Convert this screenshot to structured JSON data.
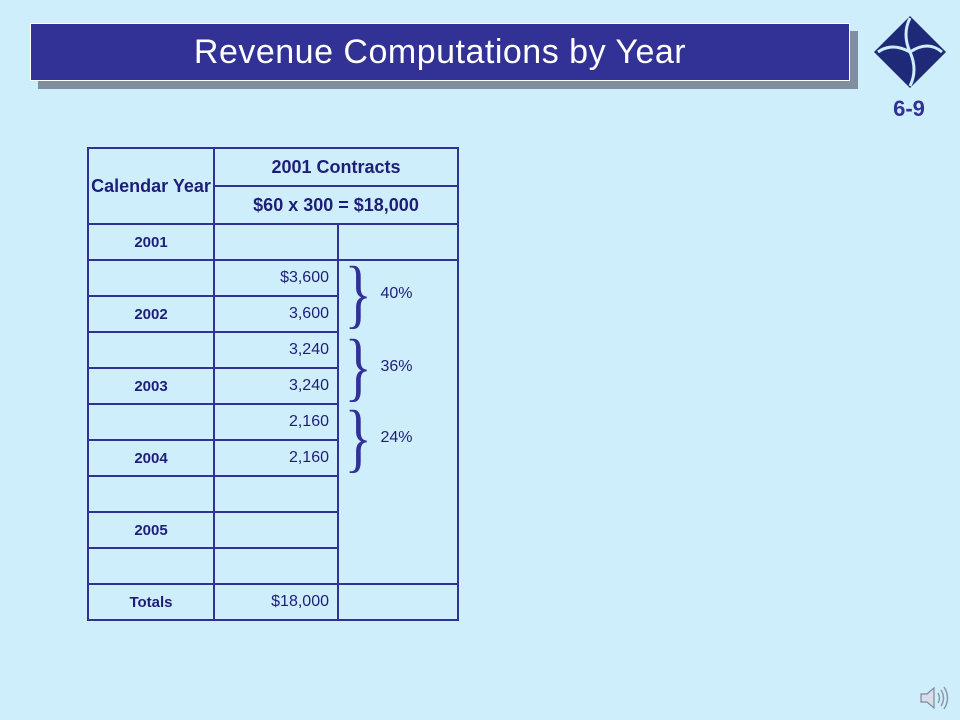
{
  "slide": {
    "title": "Revenue Computations by Year",
    "number": "6-9"
  },
  "table": {
    "header_year": "Calendar Year",
    "header_contracts": "2001 Contracts",
    "header_formula": "$60 x 300 = $18,000",
    "rows": [
      {
        "year": "2001",
        "amount": ""
      },
      {
        "year": "",
        "amount": "$3,600"
      },
      {
        "year": "2002",
        "amount": "3,600"
      },
      {
        "year": "",
        "amount": "3,240"
      },
      {
        "year": "2003",
        "amount": "3,240"
      },
      {
        "year": "",
        "amount": "2,160"
      },
      {
        "year": "2004",
        "amount": "2,160"
      },
      {
        "year": "",
        "amount": ""
      },
      {
        "year": "2005",
        "amount": ""
      },
      {
        "year": "",
        "amount": ""
      },
      {
        "year": "Totals",
        "amount": "$18,000"
      }
    ],
    "percentages": [
      "40%",
      "36%",
      "24%"
    ]
  },
  "colors": {
    "background": "#cfeefc",
    "title_bar": "#323296",
    "text": "#1e1e78"
  },
  "icons": {
    "logo": "publisher-logo-icon",
    "audio": "speaker-icon"
  }
}
